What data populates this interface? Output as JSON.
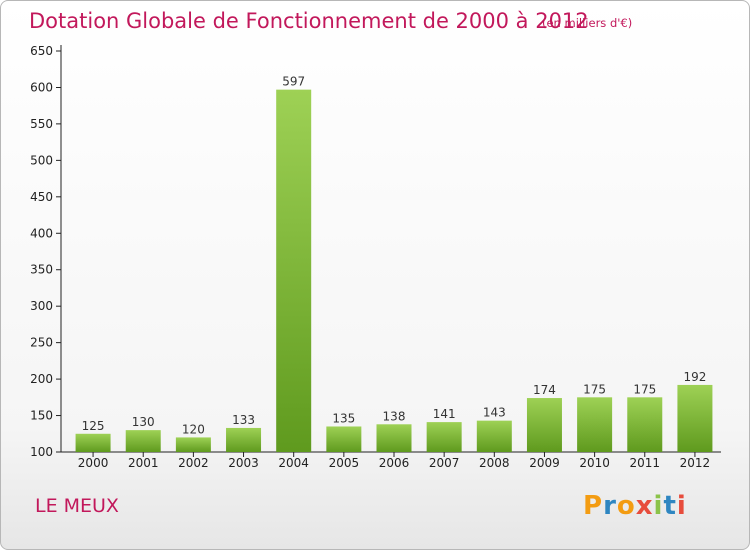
{
  "title": "Dotation Globale de Fonctionnement de 2000 à 2012",
  "unit": "(en milliers d'€)",
  "city": "LE MEUX",
  "logo": {
    "text": "Proxiti",
    "letters": [
      "P",
      "r",
      "o",
      "x",
      "i",
      "t",
      "i"
    ],
    "colors": [
      "#f39c12",
      "#2e86c1",
      "#f39c12",
      "#e74c3c",
      "#8bc34a",
      "#2e86c1",
      "#e74c3c"
    ]
  },
  "colors": {
    "title": "#c2185b",
    "bar_top": "#9ed155",
    "bar_bottom": "#5f9a1e",
    "axis": "#222222"
  },
  "chart_data": {
    "type": "bar",
    "title": "Dotation Globale de Fonctionnement de 2000 à 2012",
    "subtitle": "(en milliers d'€)",
    "xlabel": "",
    "ylabel": "",
    "categories": [
      "2000",
      "2001",
      "2002",
      "2003",
      "2004",
      "2005",
      "2006",
      "2007",
      "2008",
      "2009",
      "2010",
      "2011",
      "2012"
    ],
    "values": [
      125,
      130,
      120,
      133,
      597,
      135,
      138,
      141,
      143,
      174,
      175,
      175,
      192
    ],
    "ylim": [
      100,
      650
    ],
    "yticks": [
      100,
      150,
      200,
      250,
      300,
      350,
      400,
      450,
      500,
      550,
      600,
      650
    ],
    "grid": false,
    "data_labels": true
  }
}
